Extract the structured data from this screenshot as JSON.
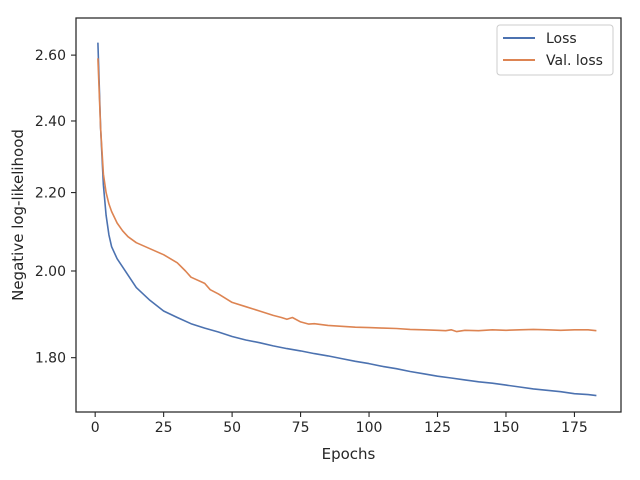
{
  "chart_data": {
    "type": "line",
    "xlabel": "Epochs",
    "ylabel": "Negative log-likelihood",
    "title": "",
    "y_scale": "log",
    "xlim": [
      -7,
      192
    ],
    "ylim": [
      1.685,
      2.72
    ],
    "x_ticks": [
      0,
      25,
      50,
      75,
      100,
      125,
      150,
      175
    ],
    "y_ticks": [
      1.8,
      2.0,
      2.2,
      2.4,
      2.6
    ],
    "y_tick_labels": [
      "1.80",
      "2.00",
      "2.20",
      "2.40",
      "2.60"
    ],
    "grid": false,
    "legend_position": "top-right",
    "colors": {
      "Loss": "#4c72b0",
      "Val. loss": "#dd8452"
    },
    "series": [
      {
        "name": "Loss",
        "x": [
          1,
          2,
          3,
          4,
          5,
          6,
          8,
          10,
          12,
          15,
          20,
          25,
          30,
          35,
          40,
          45,
          50,
          55,
          60,
          65,
          70,
          75,
          80,
          85,
          90,
          95,
          100,
          105,
          110,
          115,
          120,
          125,
          130,
          135,
          140,
          145,
          150,
          155,
          160,
          165,
          170,
          175,
          180,
          183
        ],
        "y": [
          2.64,
          2.38,
          2.22,
          2.14,
          2.09,
          2.06,
          2.03,
          2.01,
          1.99,
          1.96,
          1.93,
          1.905,
          1.89,
          1.876,
          1.866,
          1.857,
          1.847,
          1.839,
          1.833,
          1.826,
          1.82,
          1.815,
          1.809,
          1.804,
          1.798,
          1.792,
          1.787,
          1.781,
          1.776,
          1.77,
          1.765,
          1.76,
          1.756,
          1.752,
          1.748,
          1.745,
          1.741,
          1.737,
          1.733,
          1.73,
          1.727,
          1.723,
          1.721,
          1.719
        ]
      },
      {
        "name": "Val. loss",
        "x": [
          1,
          2,
          3,
          4,
          5,
          6,
          8,
          10,
          12,
          15,
          20,
          25,
          30,
          33,
          35,
          40,
          42,
          45,
          50,
          55,
          60,
          65,
          68,
          70,
          72,
          75,
          78,
          80,
          85,
          90,
          95,
          100,
          105,
          110,
          115,
          120,
          125,
          128,
          130,
          132,
          135,
          140,
          145,
          150,
          155,
          160,
          165,
          170,
          175,
          180,
          183
        ],
        "y": [
          2.59,
          2.38,
          2.25,
          2.2,
          2.17,
          2.15,
          2.12,
          2.1,
          2.085,
          2.07,
          2.055,
          2.04,
          2.02,
          2.0,
          1.985,
          1.97,
          1.955,
          1.945,
          1.925,
          1.915,
          1.905,
          1.895,
          1.89,
          1.886,
          1.89,
          1.88,
          1.875,
          1.876,
          1.872,
          1.87,
          1.868,
          1.867,
          1.866,
          1.865,
          1.863,
          1.862,
          1.861,
          1.86,
          1.862,
          1.858,
          1.861,
          1.86,
          1.862,
          1.861,
          1.862,
          1.863,
          1.862,
          1.861,
          1.862,
          1.862,
          1.86
        ]
      }
    ]
  }
}
